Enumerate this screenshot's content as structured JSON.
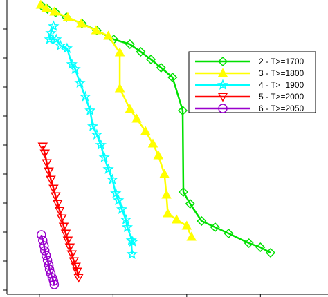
{
  "chart_data": {
    "type": "line",
    "title": "",
    "xlabel": "",
    "ylabel": "",
    "xlim": [
      -10,
      465
    ],
    "ylim": [
      -426,
      0
    ],
    "x_ticks": [
      38,
      147,
      256,
      365
    ],
    "y_ticks": [
      -42,
      -84,
      -126,
      -168,
      -210,
      -252,
      -294,
      -336,
      -378,
      -420
    ],
    "grid": false,
    "legend_position": "right",
    "series": [
      {
        "name": "2 - T>=1700",
        "color": "#00e000",
        "marker": "diamond",
        "x": [
          42,
          50,
          62,
          78,
          101,
          123,
          148,
          172,
          188,
          203,
          218,
          235,
          250,
          251,
          261,
          278,
          298,
          318,
          348,
          365,
          380
        ],
        "y": [
          -9,
          -13,
          -18,
          -25,
          -34,
          -44,
          -57,
          -64,
          -75,
          -86,
          -98,
          -112,
          -160,
          -278,
          -295,
          -320,
          -329,
          -338,
          -352,
          -358,
          -366
        ]
      },
      {
        "name": "3 - T>=1800",
        "color": "#ffff00",
        "marker": "triangle",
        "x": [
          40,
          48,
          60,
          80,
          100,
          122,
          140,
          157,
          157,
          172,
          182,
          195,
          206,
          214,
          223,
          226,
          228,
          241,
          256,
          263
        ],
        "y": [
          -7,
          -12,
          -17,
          -25,
          -34,
          -44,
          -52,
          -76,
          -128,
          -158,
          -172,
          -190,
          -208,
          -225,
          -252,
          -282,
          -309,
          -318,
          -327,
          -343
        ]
      },
      {
        "name": "4 - T>=1900",
        "color": "#00ffff",
        "marker": "star",
        "x": [
          59,
          55,
          53,
          63,
          69,
          79,
          86,
          91,
          98,
          106,
          113,
          117,
          123,
          129,
          134,
          140,
          146,
          151,
          155,
          160,
          166,
          168,
          176,
          174,
          175
        ],
        "y": [
          -38,
          -48,
          -57,
          -57,
          -66,
          -70,
          -93,
          -100,
          -120,
          -140,
          -160,
          -183,
          -195,
          -210,
          -228,
          -245,
          -260,
          -280,
          -290,
          -303,
          -318,
          -329,
          -350,
          -348,
          -368
        ]
      },
      {
        "name": "5 - T>=2000",
        "color": "#ff0000",
        "marker": "triangle-down",
        "x": [
          43,
          46,
          49,
          52,
          55,
          59,
          62,
          65,
          68,
          71,
          74,
          77,
          80,
          83,
          86,
          89,
          92,
          94,
          96
        ],
        "y": [
          -212,
          -222,
          -236,
          -248,
          -260,
          -273,
          -284,
          -295,
          -305,
          -316,
          -328,
          -338,
          -348,
          -358,
          -368,
          -378,
          -386,
          -393,
          -402
        ]
      },
      {
        "name": "6 - T>=2050",
        "color": "#9900cc",
        "marker": "circle",
        "x": [
          41,
          43,
          45,
          46,
          48,
          50,
          52,
          53,
          55,
          57,
          59,
          60
        ],
        "y": [
          -340,
          -348,
          -356,
          -363,
          -370,
          -377,
          -384,
          -390,
          -396,
          -402,
          -407,
          -412
        ]
      }
    ]
  }
}
